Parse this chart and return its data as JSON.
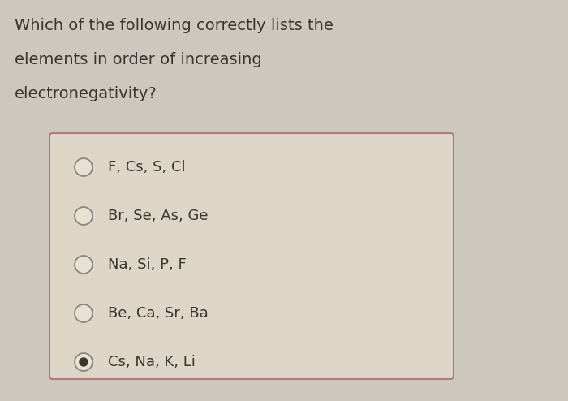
{
  "question_lines": [
    "Which of the following correctly lists the",
    "elements in order of increasing",
    "electronegativity?"
  ],
  "options": [
    "F, Cs, S, Cl",
    "Br, Se, As, Ge",
    "Na, Si, P, F",
    "Be, Ca, Sr, Ba",
    "Cs, Na, K, Li"
  ],
  "selected_index": 4,
  "bg_color": "#ccc8be",
  "box_bg_color": "#ddd5c5",
  "box_border_color": "#b87878",
  "text_color": "#3a3530",
  "question_fontsize": 14,
  "option_fontsize": 13,
  "radio_color": "#888880",
  "radio_fill": "#e8e0d0",
  "selected_dot_color": "#3a3530"
}
